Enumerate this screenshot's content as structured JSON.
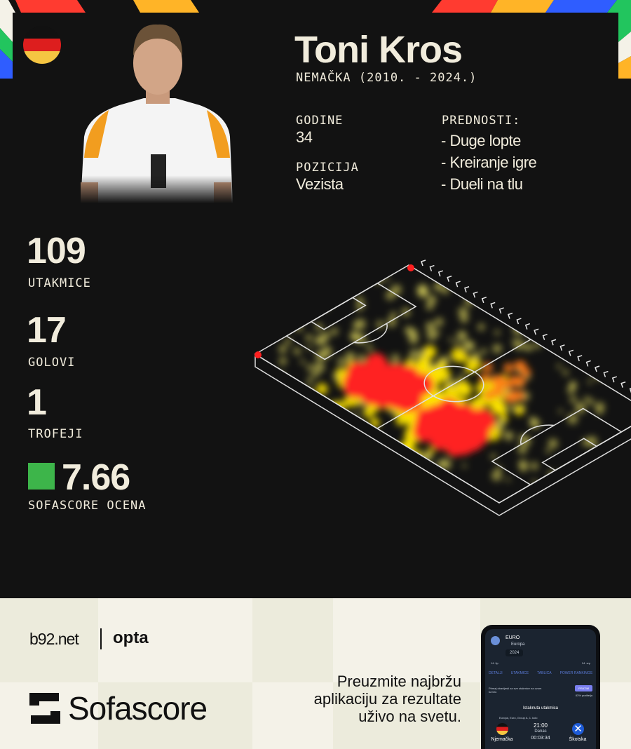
{
  "player": {
    "name": "Toni Kros",
    "subtitle": "NEMAČKA (2010. - 2024.)",
    "flag": "germany-flag"
  },
  "info": {
    "age_label": "GODINE",
    "age": "34",
    "position_label": "POZICIJA",
    "position": "Vezista",
    "strengths_label": "PREDNOSTI:",
    "strengths": [
      "- Duge lopte",
      "- Kreiranje igre",
      "- Dueli na tlu"
    ]
  },
  "stats": {
    "matches": "109",
    "matches_label": "UTAKMICE",
    "goals": "17",
    "goals_label": "GOLOVI",
    "trophies": "1",
    "trophies_label": "TROFEJI",
    "rating": "7.66",
    "rating_label": "SOFASCORE OCENA",
    "rating_color": "#3db54a"
  },
  "footer": {
    "brand1": "b92.net",
    "brand2": "opta",
    "sofascore": "Sofascore",
    "cta": [
      "Preuzmite najbržu",
      "aplikaciju za rezultate",
      "uživo na svetu."
    ]
  },
  "phone": {
    "title": "EURO",
    "region": "Europa",
    "season": "2024",
    "left_date": "14. lip",
    "right_date": "14. srp",
    "tabs": [
      "DETALJI",
      "UTAKMICE",
      "TABLICA",
      "POWER RANKINGS"
    ],
    "notify_text": "Primaj obavijesti za sve utakmice na ovom turniru",
    "follow": "PRATIM",
    "followers": "83% pratitelja",
    "featured": "Istaknuta utakmica",
    "match_info": "Europa, Euro, Group A, 1. kolo",
    "time": "21:00",
    "day": "Danas",
    "countdown": "00:03:34",
    "home": "Njemačka",
    "away": "Škotska"
  },
  "colors": {
    "bg": "#121212",
    "text": "#f1ecdc",
    "heat_hot": "#ff2020",
    "heat_mid": "#ffe600"
  }
}
